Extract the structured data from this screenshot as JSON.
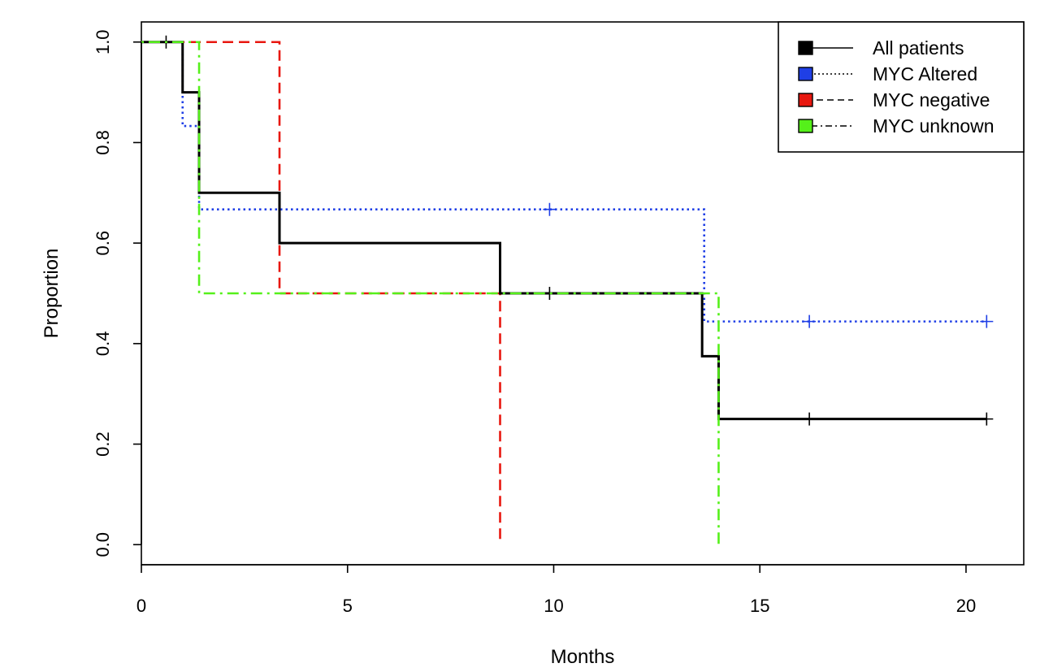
{
  "chart_data": {
    "type": "line",
    "subtype": "kaplan-meier-step",
    "title": "",
    "xlabel": "Months",
    "ylabel": "Proportion",
    "xlim": [
      0,
      21.4
    ],
    "ylim": [
      -0.04,
      1.04
    ],
    "xticks": [
      0,
      5,
      10,
      15,
      20
    ],
    "yticks": [
      0.0,
      0.2,
      0.4,
      0.6,
      0.8,
      1.0
    ],
    "xtick_labels": [
      "0",
      "5",
      "10",
      "15",
      "20"
    ],
    "ytick_labels": [
      "0.0",
      "0.2",
      "0.4",
      "0.6",
      "0.8",
      "1.0"
    ],
    "legend_position": "top-right",
    "series": [
      {
        "name": "All patients",
        "color": "#000000",
        "dash": "solid",
        "steps": [
          [
            0,
            1.0
          ],
          [
            1.0,
            0.9
          ],
          [
            1.4,
            0.7
          ],
          [
            3.35,
            0.6
          ],
          [
            8.7,
            0.5
          ],
          [
            13.6,
            0.375
          ],
          [
            14.0,
            0.25
          ],
          [
            20.5,
            0.25
          ]
        ],
        "censored": [
          [
            0.6,
            1.0
          ],
          [
            9.9,
            0.5
          ],
          [
            16.2,
            0.25
          ],
          [
            20.5,
            0.25
          ]
        ]
      },
      {
        "name": "MYC Altered",
        "color": "#1f3fe6",
        "dash": "dotted",
        "steps": [
          [
            0,
            1.0
          ],
          [
            1.0,
            0.833
          ],
          [
            1.4,
            0.667
          ],
          [
            13.65,
            0.444
          ],
          [
            20.5,
            0.444
          ]
        ],
        "censored": [
          [
            9.9,
            0.667
          ],
          [
            16.2,
            0.444
          ],
          [
            20.5,
            0.444
          ]
        ]
      },
      {
        "name": "MYC negative",
        "color": "#e8170f",
        "dash": "dashed",
        "steps": [
          [
            0,
            1.0
          ],
          [
            3.35,
            0.5
          ],
          [
            8.7,
            0.0
          ]
        ],
        "censored": []
      },
      {
        "name": "MYC unknown",
        "color": "#55f01a",
        "dash": "dotdash",
        "steps": [
          [
            0,
            1.0
          ],
          [
            1.4,
            0.5
          ],
          [
            14.0,
            0.0
          ]
        ],
        "censored": []
      }
    ]
  }
}
